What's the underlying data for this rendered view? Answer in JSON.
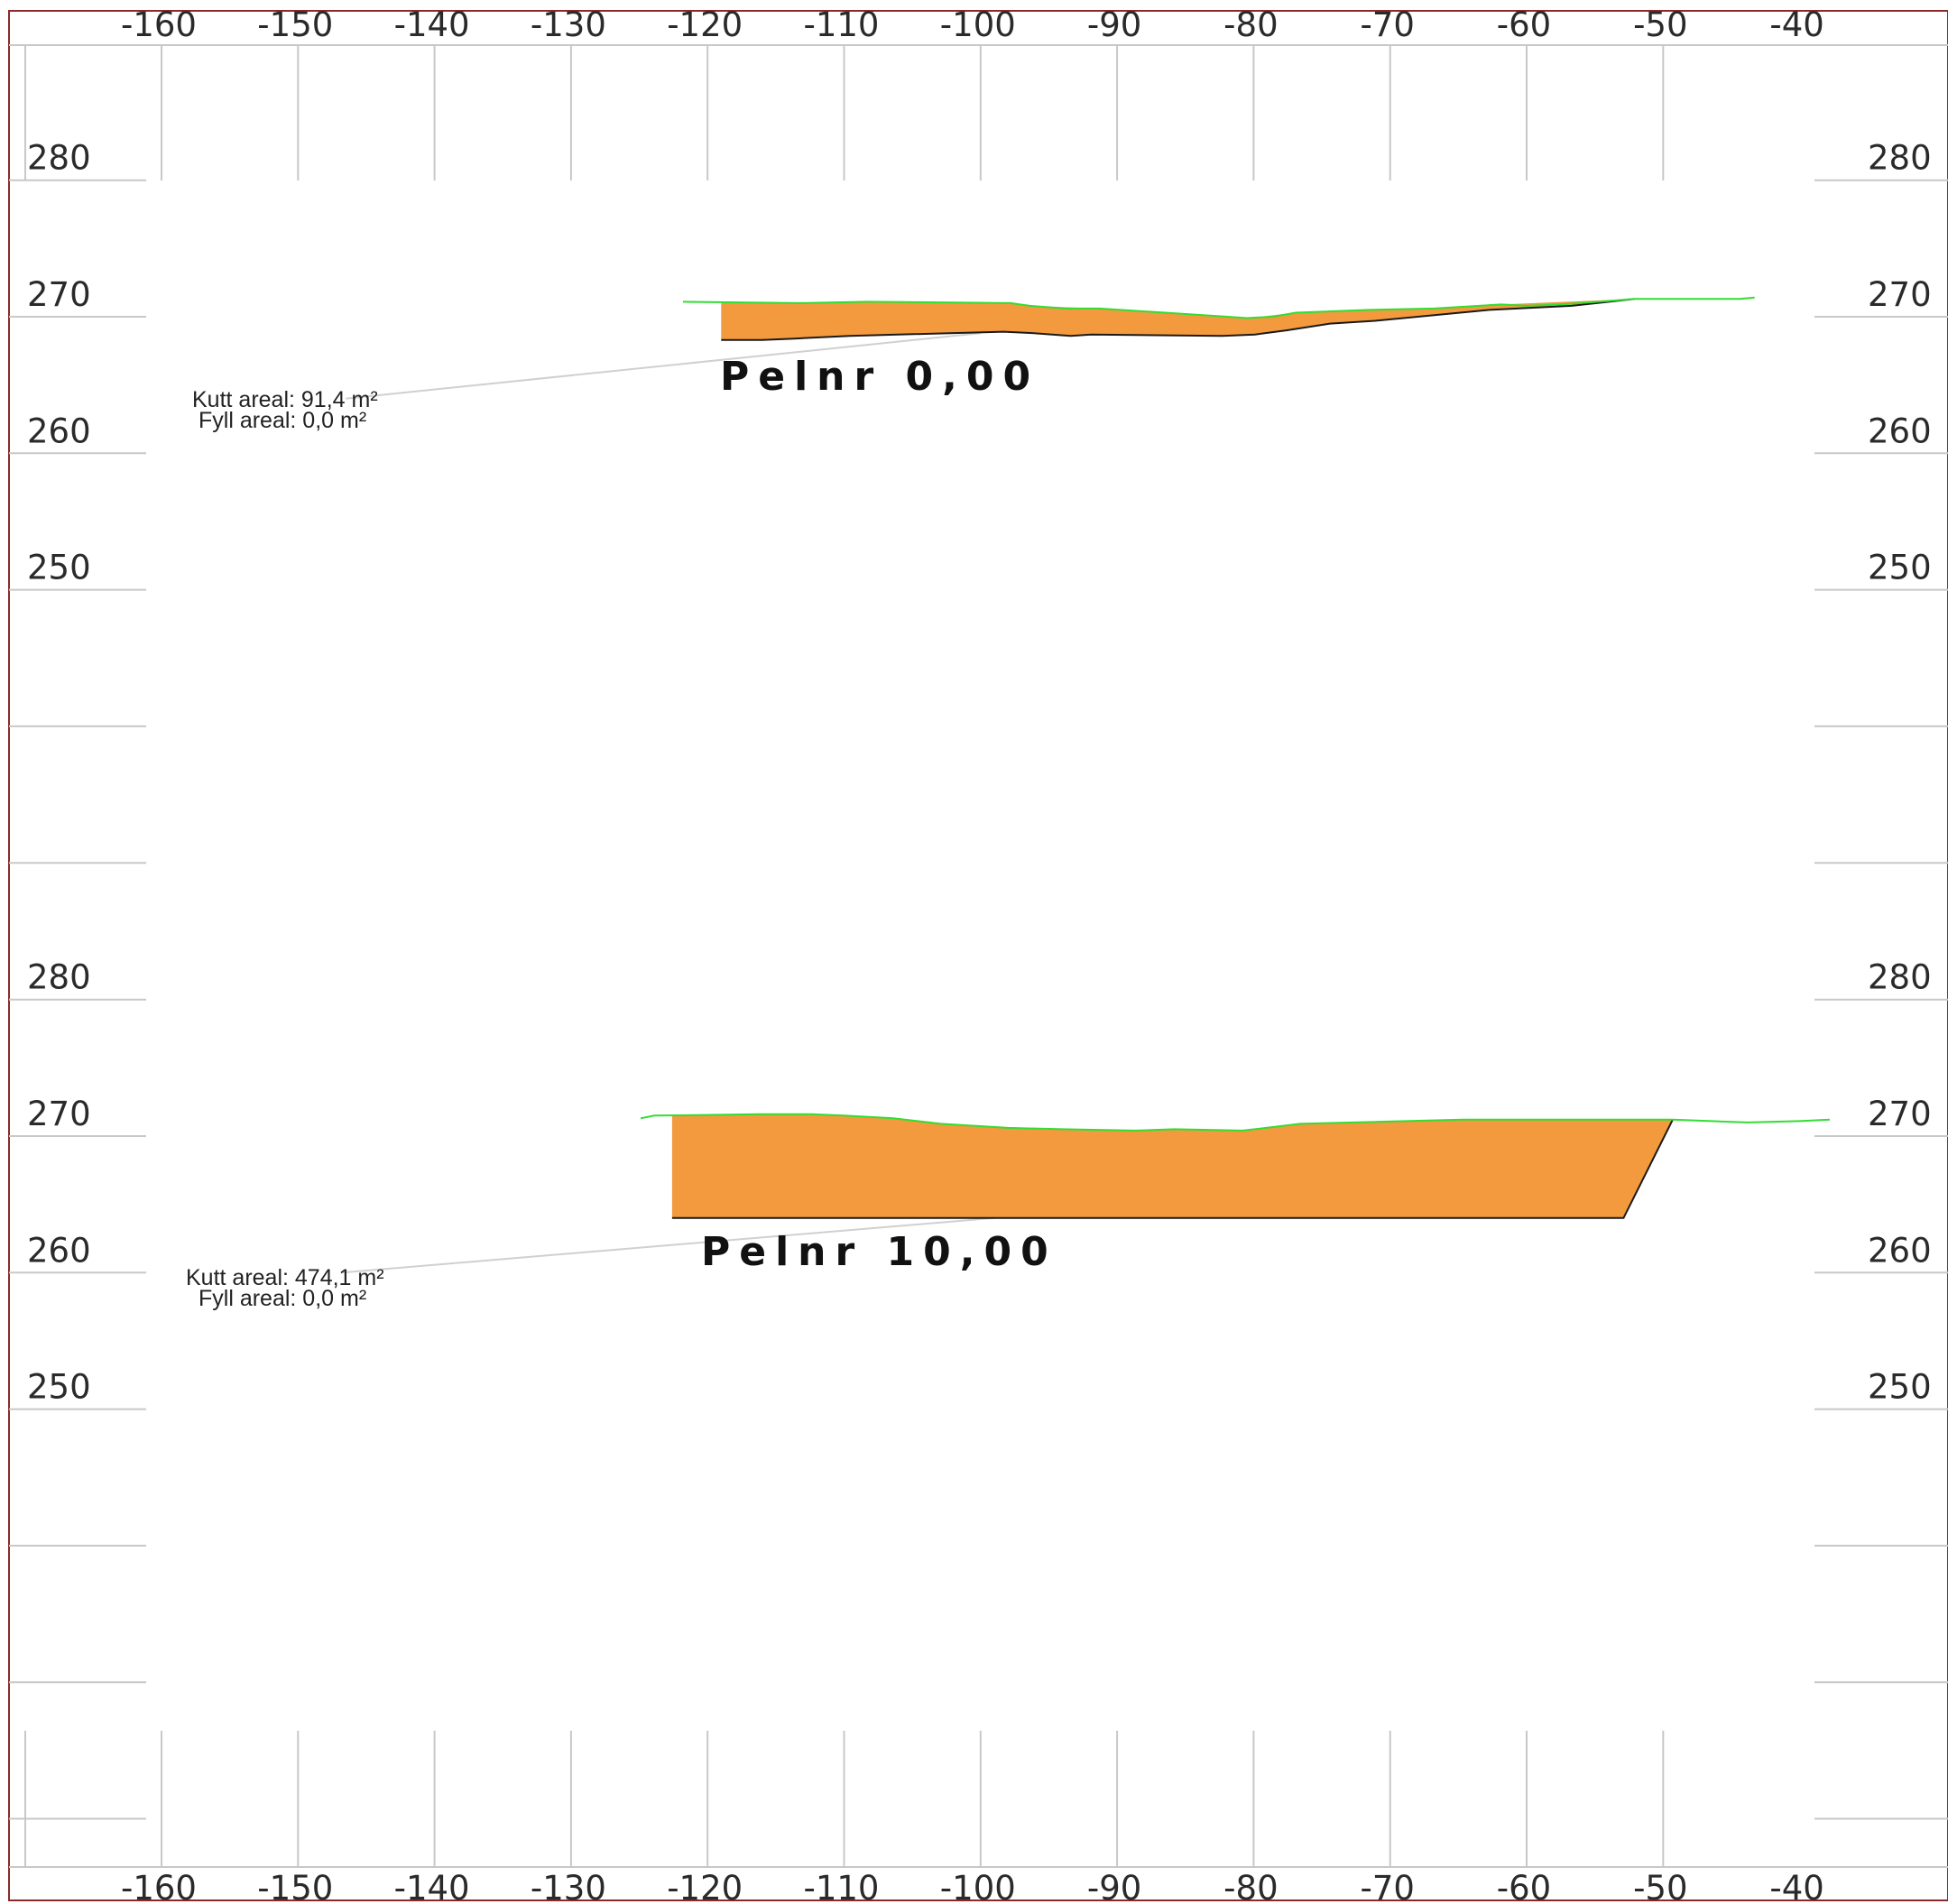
{
  "colors": {
    "border": "#8b2a2a",
    "grid": "#c8c8c8",
    "cut_fill": "#f39a3e",
    "terrain_line": "#33dd33",
    "design_line": "#1a1a1a",
    "leader_line": "#d0d0d0"
  },
  "x_axis": {
    "ticks": [
      -160,
      -150,
      -140,
      -130,
      -120,
      -110,
      -100,
      -90,
      -80,
      -70,
      -60,
      -50,
      -40
    ],
    "tick_labels": [
      "-160",
      "-150",
      "-140",
      "-130",
      "-120",
      "-110",
      "-100",
      "-90",
      "-80",
      "-70",
      "-60",
      "-50",
      "-40"
    ]
  },
  "sections": [
    {
      "id": "section-1",
      "title": "Pelnr 0,00",
      "y_ticks": [
        280,
        270,
        260,
        250
      ],
      "y_tick_labels": [
        "280",
        "270",
        "260",
        "250"
      ],
      "extra_gridline_levels": [
        240,
        230
      ],
      "cut_area_label": "Kutt areal: 91,4 m²",
      "fill_area_label": "Fyll areal:  0,0 m²",
      "terrain": [
        [
          -121.8,
          271.1
        ],
        [
          -113.3,
          271.0
        ],
        [
          -108.3,
          271.1
        ],
        [
          -97.8,
          271.0
        ],
        [
          -96.4,
          270.8
        ],
        [
          -93.8,
          270.6
        ],
        [
          -91.3,
          270.6
        ],
        [
          -86.5,
          270.3
        ],
        [
          -81.9,
          270.0
        ],
        [
          -80.5,
          269.9
        ],
        [
          -78.6,
          270.0
        ],
        [
          -76.9,
          270.3
        ],
        [
          -71.5,
          270.5
        ],
        [
          -66.8,
          270.6
        ],
        [
          -61.9,
          270.9
        ],
        [
          -59.9,
          270.8
        ],
        [
          -57.4,
          270.9
        ],
        [
          -52.1,
          271.3
        ],
        [
          -44.4,
          271.3
        ],
        [
          -43.3,
          271.4
        ]
      ],
      "cut_outline": [
        [
          -119.0,
          271.0
        ],
        [
          -108.3,
          271.1
        ],
        [
          -97.8,
          271.0
        ],
        [
          -96.4,
          270.8
        ],
        [
          -91.3,
          270.6
        ],
        [
          -86.5,
          270.3
        ],
        [
          -80.5,
          269.9
        ],
        [
          -76.9,
          270.3
        ],
        [
          -66.8,
          270.6
        ],
        [
          -61.9,
          270.9
        ],
        [
          -52.1,
          271.3
        ],
        [
          -56.7,
          270.8
        ],
        [
          -62.7,
          270.5
        ],
        [
          -71.1,
          269.7
        ],
        [
          -74.4,
          269.5
        ],
        [
          -77.6,
          269.0
        ],
        [
          -79.9,
          268.7
        ],
        [
          -82.3,
          268.6
        ],
        [
          -91.9,
          268.7
        ],
        [
          -93.4,
          268.6
        ],
        [
          -96.1,
          268.8
        ],
        [
          -98.3,
          268.9
        ],
        [
          -109.6,
          268.6
        ],
        [
          -113.6,
          268.4
        ],
        [
          -116.0,
          268.3
        ],
        [
          -119.0,
          268.3
        ]
      ],
      "design": [
        [
          -119.0,
          268.3
        ],
        [
          -116.0,
          268.3
        ],
        [
          -113.6,
          268.4
        ],
        [
          -109.6,
          268.6
        ],
        [
          -98.3,
          268.9
        ],
        [
          -96.1,
          268.8
        ],
        [
          -93.4,
          268.6
        ],
        [
          -91.9,
          268.7
        ],
        [
          -82.3,
          268.6
        ],
        [
          -79.9,
          268.7
        ],
        [
          -77.6,
          269.0
        ],
        [
          -74.4,
          269.5
        ],
        [
          -71.1,
          269.7
        ],
        [
          -62.7,
          270.5
        ],
        [
          -56.7,
          270.8
        ],
        [
          -52.1,
          271.3
        ]
      ],
      "leader_from": [
        -100.0,
        268.8
      ],
      "leader_to": [
        -146.5,
        264.0
      ]
    },
    {
      "id": "section-2",
      "title": "Pelnr 10,00",
      "y_ticks": [
        280,
        270,
        260,
        250
      ],
      "y_tick_labels": [
        "280",
        "270",
        "260",
        "250"
      ],
      "extra_gridline_levels": [
        240,
        230,
        220
      ],
      "cut_area_label": "Kutt areal: 474,1 m²",
      "fill_area_label": "Fyll areal:  0,0 m²",
      "terrain": [
        [
          -124.9,
          271.3
        ],
        [
          -123.9,
          271.5
        ],
        [
          -116.2,
          271.6
        ],
        [
          -112.4,
          271.6
        ],
        [
          -110.0,
          271.5
        ],
        [
          -106.4,
          271.3
        ],
        [
          -102.9,
          270.9
        ],
        [
          -98.0,
          270.6
        ],
        [
          -94.0,
          270.5
        ],
        [
          -88.7,
          270.4
        ],
        [
          -85.8,
          270.5
        ],
        [
          -80.8,
          270.4
        ],
        [
          -76.6,
          270.9
        ],
        [
          -64.7,
          271.2
        ],
        [
          -60.0,
          271.2
        ],
        [
          -49.3,
          271.2
        ],
        [
          -43.8,
          271.0
        ],
        [
          -40.0,
          271.1
        ],
        [
          -37.8,
          271.2
        ]
      ],
      "cut_outline": [
        [
          -122.6,
          271.5
        ],
        [
          -116.2,
          271.6
        ],
        [
          -112.4,
          271.6
        ],
        [
          -110.0,
          271.5
        ],
        [
          -106.4,
          271.3
        ],
        [
          -102.9,
          270.9
        ],
        [
          -98.0,
          270.6
        ],
        [
          -94.0,
          270.5
        ],
        [
          -88.7,
          270.4
        ],
        [
          -85.8,
          270.5
        ],
        [
          -80.8,
          270.4
        ],
        [
          -76.6,
          270.9
        ],
        [
          -64.7,
          271.2
        ],
        [
          -60.0,
          271.2
        ],
        [
          -49.3,
          271.2
        ],
        [
          -52.9,
          264.0
        ],
        [
          -122.6,
          264.0
        ]
      ],
      "design": [
        [
          -122.6,
          264.0
        ],
        [
          -52.9,
          264.0
        ],
        [
          -49.3,
          271.2
        ]
      ],
      "leader_from": [
        -99.0,
        264.0
      ],
      "leader_to": [
        -146.8,
        260.0
      ]
    }
  ]
}
